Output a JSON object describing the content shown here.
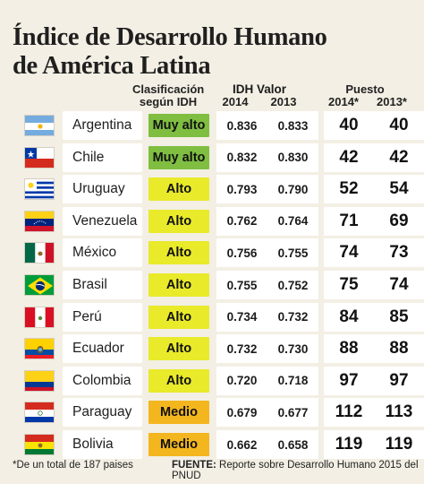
{
  "title_line1": "Índice de Desarrollo Humano",
  "title_line2": "de América Latina",
  "headers": {
    "class_line1": "Clasificación",
    "class_line2": "según IDH",
    "idh": "IDH Valor",
    "idh_2014": "2014",
    "idh_2013": "2013",
    "puesto": "Puesto",
    "puesto_2014": "2014*",
    "puesto_2013": "2013*"
  },
  "footnote": "*De un total de 187 paises",
  "source_label": "FUENTE:",
  "source_text": " Reporte sobre Desarrollo Humano 2015 del PNUD",
  "colors": {
    "muy_alto": "#7fbe41",
    "alto": "#e8ea2a",
    "medio": "#f3b61e",
    "background": "#f3efe4"
  },
  "chart_data": {
    "type": "table",
    "title": "Índice de Desarrollo Humano de América Latina",
    "columns": [
      "Clasificación según IDH",
      "IDH Valor 2014",
      "IDH Valor 2013",
      "Puesto 2014*",
      "Puesto 2013*"
    ],
    "rows": [
      {
        "country": "Argentina",
        "flag": "argentina-flag",
        "class": "Muy alto",
        "idh_2014": "0.836",
        "idh_2013": "0.833",
        "rank_2014": "40",
        "rank_2013": "40"
      },
      {
        "country": "Chile",
        "flag": "chile-flag",
        "class": "Muy alto",
        "idh_2014": "0.832",
        "idh_2013": "0.830",
        "rank_2014": "42",
        "rank_2013": "42"
      },
      {
        "country": "Uruguay",
        "flag": "uruguay-flag",
        "class": "Alto",
        "idh_2014": "0.793",
        "idh_2013": "0.790",
        "rank_2014": "52",
        "rank_2013": "54"
      },
      {
        "country": "Venezuela",
        "flag": "venezuela-flag",
        "class": "Alto",
        "idh_2014": "0.762",
        "idh_2013": "0.764",
        "rank_2014": "71",
        "rank_2013": "69"
      },
      {
        "country": "México",
        "flag": "mexico-flag",
        "class": "Alto",
        "idh_2014": "0.756",
        "idh_2013": "0.755",
        "rank_2014": "74",
        "rank_2013": "73"
      },
      {
        "country": "Brasil",
        "flag": "brasil-flag",
        "class": "Alto",
        "idh_2014": "0.755",
        "idh_2013": "0.752",
        "rank_2014": "75",
        "rank_2013": "74"
      },
      {
        "country": "Perú",
        "flag": "peru-flag",
        "class": "Alto",
        "idh_2014": "0.734",
        "idh_2013": "0.732",
        "rank_2014": "84",
        "rank_2013": "85"
      },
      {
        "country": "Ecuador",
        "flag": "ecuador-flag",
        "class": "Alto",
        "idh_2014": "0.732",
        "idh_2013": "0.730",
        "rank_2014": "88",
        "rank_2013": "88"
      },
      {
        "country": "Colombia",
        "flag": "colombia-flag",
        "class": "Alto",
        "idh_2014": "0.720",
        "idh_2013": "0.718",
        "rank_2014": "97",
        "rank_2013": "97"
      },
      {
        "country": "Paraguay",
        "flag": "paraguay-flag",
        "class": "Medio",
        "idh_2014": "0.679",
        "idh_2013": "0.677",
        "rank_2014": "112",
        "rank_2013": "113"
      },
      {
        "country": "Bolivia",
        "flag": "bolivia-flag",
        "class": "Medio",
        "idh_2014": "0.662",
        "idh_2013": "0.658",
        "rank_2014": "119",
        "rank_2013": "119"
      }
    ]
  }
}
